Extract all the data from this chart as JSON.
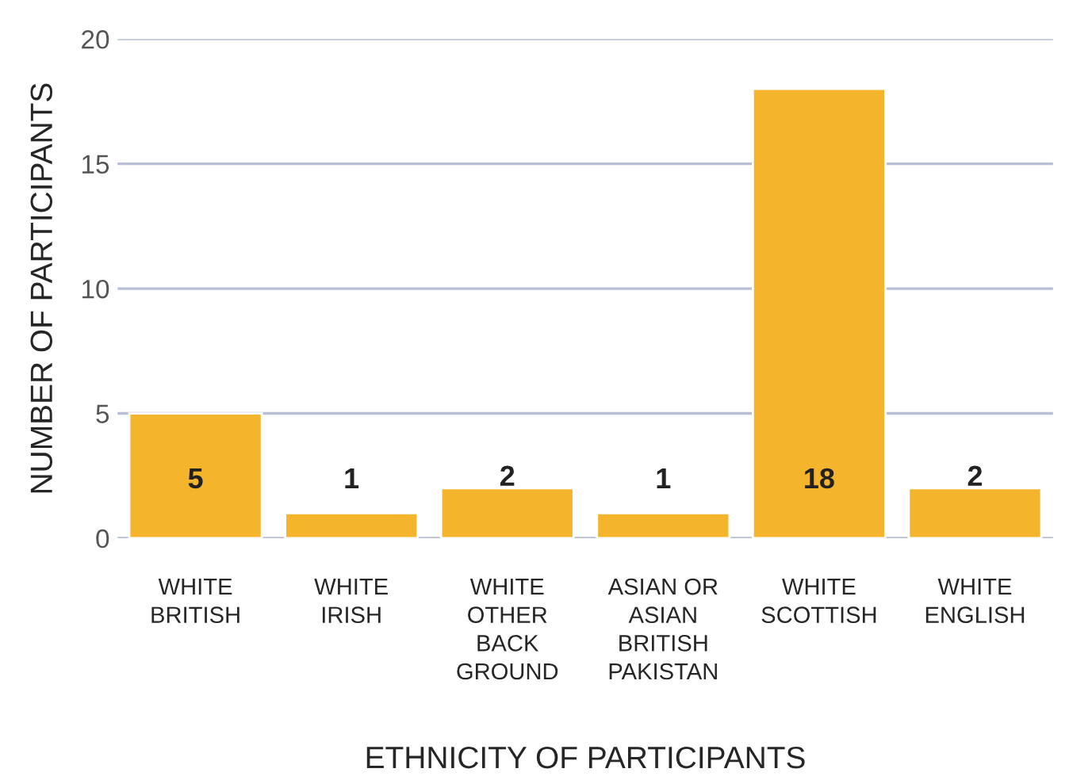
{
  "chart_data": {
    "type": "bar",
    "xlabel": "ETHNICITY OF PARTICIPANTS",
    "ylabel": "NUMBER OF PARTICIPANTS",
    "categories": [
      "WHITE\nBRITISH",
      "WHITE\nIRISH",
      "WHITE\nOTHER\nBACK\nGROUND",
      "ASIAN OR\nASIAN\nBRITISH\nPAKISTAN",
      "WHITE\nSCOTTISH",
      "WHITE\nENGLISH"
    ],
    "values": [
      5,
      1,
      2,
      1,
      18,
      2
    ],
    "color": "#f4b42c",
    "ylim": [
      0,
      20
    ],
    "yticks": [
      0,
      5,
      10,
      15,
      20
    ],
    "grid": "y",
    "data_labels": true
  }
}
